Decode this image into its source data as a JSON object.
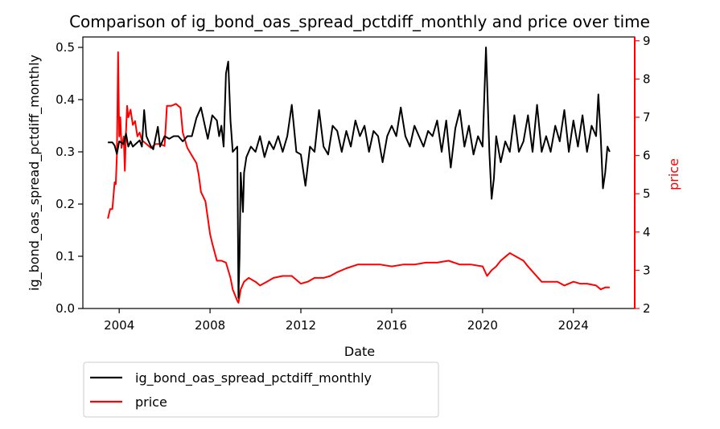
{
  "chart_data": {
    "type": "line",
    "title": "Comparison of ig_bond_oas_spread_pctdiff_monthly and price over time",
    "xlabel": "Date",
    "ylabel_left": "ig_bond_oas_spread_pctdiff_monthly",
    "ylabel_right": "price",
    "xlim": [
      2002.4,
      2026.7
    ],
    "ylim_left": [
      0,
      0.52
    ],
    "ylim_right": [
      2,
      9.1
    ],
    "x_ticks": [
      2004,
      2008,
      2012,
      2016,
      2020,
      2024
    ],
    "x_tick_labels": [
      "2004",
      "2008",
      "2012",
      "2016",
      "2020",
      "2024"
    ],
    "y_left_ticks": [
      0.0,
      0.1,
      0.2,
      0.3,
      0.4,
      0.5
    ],
    "y_left_tick_labels": [
      "0.0",
      "0.1",
      "0.2",
      "0.3",
      "0.4",
      "0.5"
    ],
    "y_right_ticks": [
      2,
      3,
      4,
      5,
      6,
      7,
      8,
      9
    ],
    "y_right_tick_labels": [
      "2",
      "3",
      "4",
      "5",
      "6",
      "7",
      "8",
      "9"
    ],
    "grid": false,
    "legend_position": "below-left",
    "series": [
      {
        "name": "ig_bond_oas_spread_pctdiff_monthly",
        "axis": "left",
        "color": "#000000",
        "points": [
          [
            2003.5,
            0.318
          ],
          [
            2003.7,
            0.318
          ],
          [
            2003.8,
            0.312
          ],
          [
            2003.9,
            0.296
          ],
          [
            2004.0,
            0.32
          ],
          [
            2004.2,
            0.315
          ],
          [
            2004.3,
            0.335
          ],
          [
            2004.4,
            0.31
          ],
          [
            2004.5,
            0.32
          ],
          [
            2004.6,
            0.31
          ],
          [
            2004.8,
            0.318
          ],
          [
            2004.9,
            0.322
          ],
          [
            2005.0,
            0.31
          ],
          [
            2005.1,
            0.38
          ],
          [
            2005.2,
            0.33
          ],
          [
            2005.4,
            0.31
          ],
          [
            2005.5,
            0.305
          ],
          [
            2005.7,
            0.348
          ],
          [
            2005.8,
            0.31
          ],
          [
            2006.0,
            0.33
          ],
          [
            2006.2,
            0.325
          ],
          [
            2006.4,
            0.33
          ],
          [
            2006.6,
            0.33
          ],
          [
            2006.8,
            0.32
          ],
          [
            2007.0,
            0.33
          ],
          [
            2007.2,
            0.33
          ],
          [
            2007.4,
            0.365
          ],
          [
            2007.6,
            0.385
          ],
          [
            2007.8,
            0.345
          ],
          [
            2007.9,
            0.325
          ],
          [
            2008.1,
            0.37
          ],
          [
            2008.3,
            0.36
          ],
          [
            2008.4,
            0.33
          ],
          [
            2008.5,
            0.35
          ],
          [
            2008.6,
            0.31
          ],
          [
            2008.7,
            0.45
          ],
          [
            2008.8,
            0.473
          ],
          [
            2008.9,
            0.36
          ],
          [
            2009.0,
            0.3
          ],
          [
            2009.2,
            0.31
          ],
          [
            2009.25,
            0.02
          ],
          [
            2009.3,
            0.1
          ],
          [
            2009.35,
            0.26
          ],
          [
            2009.45,
            0.185
          ],
          [
            2009.5,
            0.26
          ],
          [
            2009.6,
            0.29
          ],
          [
            2009.7,
            0.3
          ],
          [
            2009.8,
            0.31
          ],
          [
            2010.0,
            0.3
          ],
          [
            2010.2,
            0.33
          ],
          [
            2010.4,
            0.29
          ],
          [
            2010.6,
            0.32
          ],
          [
            2010.8,
            0.305
          ],
          [
            2011.0,
            0.33
          ],
          [
            2011.2,
            0.3
          ],
          [
            2011.4,
            0.33
          ],
          [
            2011.6,
            0.39
          ],
          [
            2011.8,
            0.3
          ],
          [
            2012.0,
            0.295
          ],
          [
            2012.2,
            0.235
          ],
          [
            2012.4,
            0.31
          ],
          [
            2012.6,
            0.3
          ],
          [
            2012.8,
            0.38
          ],
          [
            2013.0,
            0.31
          ],
          [
            2013.2,
            0.295
          ],
          [
            2013.4,
            0.35
          ],
          [
            2013.6,
            0.34
          ],
          [
            2013.8,
            0.3
          ],
          [
            2014.0,
            0.34
          ],
          [
            2014.2,
            0.31
          ],
          [
            2014.4,
            0.36
          ],
          [
            2014.6,
            0.33
          ],
          [
            2014.8,
            0.35
          ],
          [
            2015.0,
            0.3
          ],
          [
            2015.2,
            0.34
          ],
          [
            2015.4,
            0.33
          ],
          [
            2015.6,
            0.28
          ],
          [
            2015.8,
            0.33
          ],
          [
            2016.0,
            0.35
          ],
          [
            2016.2,
            0.33
          ],
          [
            2016.4,
            0.385
          ],
          [
            2016.6,
            0.33
          ],
          [
            2016.8,
            0.31
          ],
          [
            2017.0,
            0.35
          ],
          [
            2017.2,
            0.33
          ],
          [
            2017.4,
            0.31
          ],
          [
            2017.6,
            0.34
          ],
          [
            2017.8,
            0.33
          ],
          [
            2018.0,
            0.36
          ],
          [
            2018.2,
            0.3
          ],
          [
            2018.4,
            0.36
          ],
          [
            2018.6,
            0.27
          ],
          [
            2018.8,
            0.345
          ],
          [
            2019.0,
            0.38
          ],
          [
            2019.2,
            0.31
          ],
          [
            2019.4,
            0.35
          ],
          [
            2019.6,
            0.295
          ],
          [
            2019.8,
            0.33
          ],
          [
            2020.0,
            0.31
          ],
          [
            2020.15,
            0.5
          ],
          [
            2020.3,
            0.3
          ],
          [
            2020.4,
            0.21
          ],
          [
            2020.5,
            0.25
          ],
          [
            2020.6,
            0.33
          ],
          [
            2020.8,
            0.28
          ],
          [
            2021.0,
            0.32
          ],
          [
            2021.2,
            0.3
          ],
          [
            2021.4,
            0.37
          ],
          [
            2021.6,
            0.3
          ],
          [
            2021.8,
            0.32
          ],
          [
            2022.0,
            0.37
          ],
          [
            2022.2,
            0.3
          ],
          [
            2022.4,
            0.39
          ],
          [
            2022.6,
            0.3
          ],
          [
            2022.8,
            0.33
          ],
          [
            2023.0,
            0.3
          ],
          [
            2023.2,
            0.35
          ],
          [
            2023.4,
            0.32
          ],
          [
            2023.6,
            0.38
          ],
          [
            2023.8,
            0.3
          ],
          [
            2024.0,
            0.36
          ],
          [
            2024.2,
            0.31
          ],
          [
            2024.4,
            0.37
          ],
          [
            2024.6,
            0.3
          ],
          [
            2024.8,
            0.35
          ],
          [
            2025.0,
            0.33
          ],
          [
            2025.1,
            0.41
          ],
          [
            2025.2,
            0.33
          ],
          [
            2025.3,
            0.23
          ],
          [
            2025.4,
            0.26
          ],
          [
            2025.5,
            0.31
          ],
          [
            2025.6,
            0.3
          ]
        ]
      },
      {
        "name": "price",
        "axis": "right",
        "color": "#ff0000",
        "points": [
          [
            2003.5,
            4.35
          ],
          [
            2003.6,
            4.6
          ],
          [
            2003.7,
            4.6
          ],
          [
            2003.8,
            5.3
          ],
          [
            2003.85,
            5.25
          ],
          [
            2003.9,
            6.0
          ],
          [
            2003.95,
            8.7
          ],
          [
            2004.0,
            6.5
          ],
          [
            2004.05,
            7.0
          ],
          [
            2004.1,
            6.2
          ],
          [
            2004.2,
            6.5
          ],
          [
            2004.25,
            5.6
          ],
          [
            2004.3,
            6.6
          ],
          [
            2004.35,
            7.3
          ],
          [
            2004.4,
            7.0
          ],
          [
            2004.5,
            7.2
          ],
          [
            2004.6,
            6.8
          ],
          [
            2004.7,
            6.9
          ],
          [
            2004.8,
            6.5
          ],
          [
            2004.9,
            6.6
          ],
          [
            2005.0,
            6.4
          ],
          [
            2005.2,
            6.3
          ],
          [
            2005.4,
            6.2
          ],
          [
            2005.6,
            6.3
          ],
          [
            2005.8,
            6.3
          ],
          [
            2006.0,
            6.25
          ],
          [
            2006.1,
            7.3
          ],
          [
            2006.3,
            7.3
          ],
          [
            2006.5,
            7.35
          ],
          [
            2006.7,
            7.25
          ],
          [
            2006.8,
            6.6
          ],
          [
            2007.0,
            6.2
          ],
          [
            2007.2,
            6.0
          ],
          [
            2007.4,
            5.8
          ],
          [
            2007.5,
            5.5
          ],
          [
            2007.6,
            5.05
          ],
          [
            2007.8,
            4.8
          ],
          [
            2008.0,
            3.95
          ],
          [
            2008.1,
            3.7
          ],
          [
            2008.3,
            3.25
          ],
          [
            2008.5,
            3.25
          ],
          [
            2008.7,
            3.2
          ],
          [
            2008.9,
            2.8
          ],
          [
            2009.0,
            2.5
          ],
          [
            2009.2,
            2.2
          ],
          [
            2009.25,
            2.15
          ],
          [
            2009.35,
            2.5
          ],
          [
            2009.5,
            2.7
          ],
          [
            2009.7,
            2.8
          ],
          [
            2010.0,
            2.7
          ],
          [
            2010.2,
            2.6
          ],
          [
            2010.5,
            2.7
          ],
          [
            2010.8,
            2.8
          ],
          [
            2011.2,
            2.85
          ],
          [
            2011.6,
            2.85
          ],
          [
            2012.0,
            2.65
          ],
          [
            2012.3,
            2.7
          ],
          [
            2012.6,
            2.8
          ],
          [
            2013.0,
            2.8
          ],
          [
            2013.3,
            2.85
          ],
          [
            2013.6,
            2.95
          ],
          [
            2014.0,
            3.05
          ],
          [
            2014.5,
            3.15
          ],
          [
            2015.0,
            3.15
          ],
          [
            2015.5,
            3.15
          ],
          [
            2016.0,
            3.1
          ],
          [
            2016.5,
            3.15
          ],
          [
            2017.0,
            3.15
          ],
          [
            2017.5,
            3.2
          ],
          [
            2018.0,
            3.2
          ],
          [
            2018.5,
            3.25
          ],
          [
            2019.0,
            3.15
          ],
          [
            2019.5,
            3.15
          ],
          [
            2020.0,
            3.1
          ],
          [
            2020.2,
            2.85
          ],
          [
            2020.4,
            3.0
          ],
          [
            2020.6,
            3.1
          ],
          [
            2020.8,
            3.25
          ],
          [
            2021.0,
            3.35
          ],
          [
            2021.2,
            3.45
          ],
          [
            2021.5,
            3.35
          ],
          [
            2021.8,
            3.25
          ],
          [
            2022.0,
            3.1
          ],
          [
            2022.3,
            2.9
          ],
          [
            2022.6,
            2.7
          ],
          [
            2023.0,
            2.7
          ],
          [
            2023.3,
            2.7
          ],
          [
            2023.6,
            2.6
          ],
          [
            2024.0,
            2.7
          ],
          [
            2024.3,
            2.65
          ],
          [
            2024.6,
            2.65
          ],
          [
            2025.0,
            2.6
          ],
          [
            2025.2,
            2.5
          ],
          [
            2025.4,
            2.55
          ],
          [
            2025.6,
            2.55
          ]
        ]
      }
    ]
  }
}
